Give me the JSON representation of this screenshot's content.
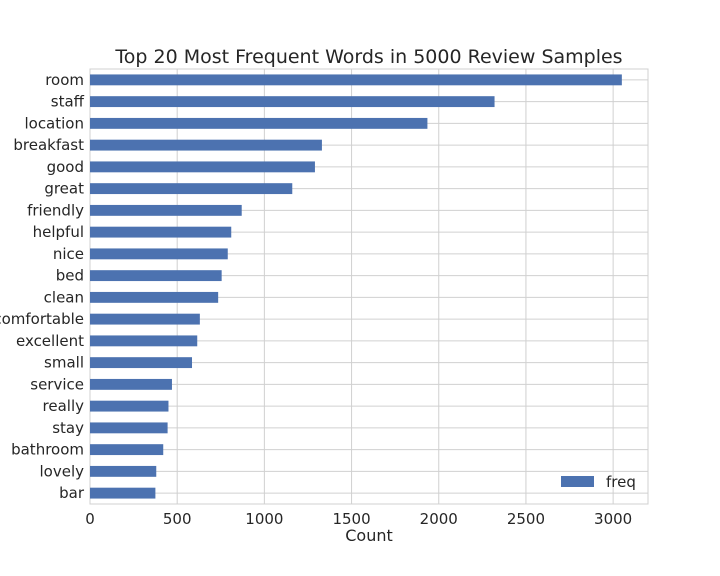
{
  "chart_data": {
    "type": "bar",
    "orientation": "horizontal",
    "title": "Top 20 Most Frequent Words in 5000 Review Samples",
    "xlabel": "Count",
    "ylabel": "",
    "xlim": [
      0,
      3200
    ],
    "xticks": [
      0,
      500,
      1000,
      1500,
      2000,
      2500,
      3000
    ],
    "grid": true,
    "legend_position": "lower-right",
    "bar_color": "#4c72b0",
    "categories": [
      "room",
      "staff",
      "location",
      "breakfast",
      "good",
      "great",
      "friendly",
      "helpful",
      "nice",
      "bed",
      "clean",
      "comfortable",
      "excellent",
      "small",
      "service",
      "really",
      "stay",
      "bathroom",
      "lovely",
      "bar"
    ],
    "series": [
      {
        "name": "freq",
        "values": [
          3050,
          2320,
          1935,
          1330,
          1290,
          1160,
          870,
          810,
          790,
          755,
          735,
          630,
          615,
          585,
          470,
          450,
          445,
          420,
          380,
          375
        ]
      }
    ]
  }
}
